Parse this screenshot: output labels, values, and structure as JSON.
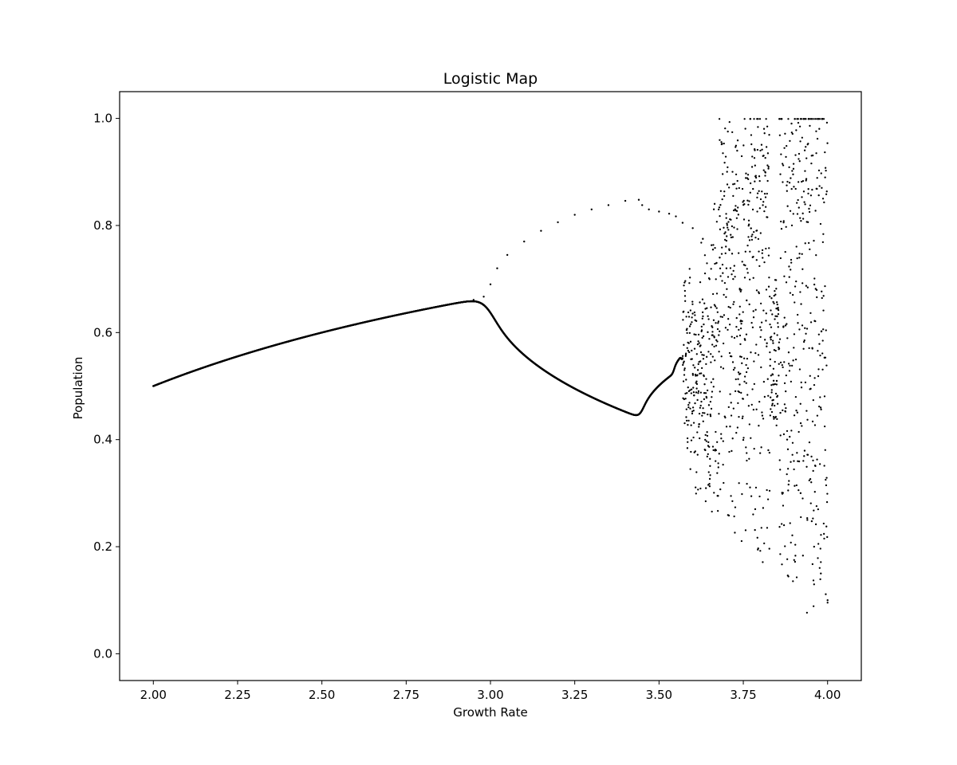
{
  "chart_data": {
    "type": "scatter",
    "title": "Logistic Map",
    "xlabel": "Growth Rate",
    "ylabel": "Population",
    "xlim": [
      1.9,
      4.1
    ],
    "ylim": [
      -0.05,
      1.05
    ],
    "xticks": [
      2.0,
      2.25,
      2.5,
      2.75,
      3.0,
      3.25,
      3.5,
      3.75,
      4.0
    ],
    "xtick_labels": [
      "2.00",
      "2.25",
      "2.50",
      "2.75",
      "3.00",
      "3.25",
      "3.50",
      "3.75",
      "4.00"
    ],
    "yticks": [
      0.0,
      0.2,
      0.4,
      0.6,
      0.8,
      1.0
    ],
    "ytick_labels": [
      "0.0",
      "0.2",
      "0.4",
      "0.6",
      "0.8",
      "1.0"
    ],
    "grid": false,
    "marker_color": "#000000",
    "series": [
      {
        "x": [
          2.0,
          2.1,
          2.2,
          2.3,
          2.4,
          2.5,
          2.6,
          2.7,
          2.8,
          2.9,
          2.95,
          2.98,
          3.0,
          3.02,
          3.05,
          3.1,
          3.15,
          3.2,
          3.25,
          3.3,
          3.35,
          3.4,
          3.44,
          3.45,
          3.47,
          3.5,
          3.53,
          3.55,
          3.57,
          3.6,
          3.63,
          3.66,
          3.68,
          3.7,
          3.72,
          3.74,
          3.76,
          3.78,
          3.8,
          3.82,
          3.83,
          3.84,
          3.85,
          3.86,
          3.88,
          3.9,
          3.92,
          3.94,
          3.96,
          3.98,
          4.0
        ],
        "y": [
          0.5,
          0.524,
          0.545,
          0.565,
          0.583,
          0.6,
          0.615,
          0.63,
          0.643,
          0.655,
          0.661,
          0.667,
          0.69,
          0.72,
          0.745,
          0.77,
          0.79,
          0.806,
          0.82,
          0.83,
          0.838,
          0.846,
          0.848,
          0.838,
          0.83,
          0.826,
          0.822,
          0.817,
          0.805,
          0.795,
          0.775,
          0.755,
          0.74,
          0.72,
          0.7,
          0.68,
          0.66,
          0.64,
          0.61,
          0.58,
          0.55,
          0.51,
          0.48,
          0.45,
          0.4,
          0.36,
          0.3,
          0.25,
          0.2,
          0.15,
          0.1
        ]
      }
    ]
  }
}
